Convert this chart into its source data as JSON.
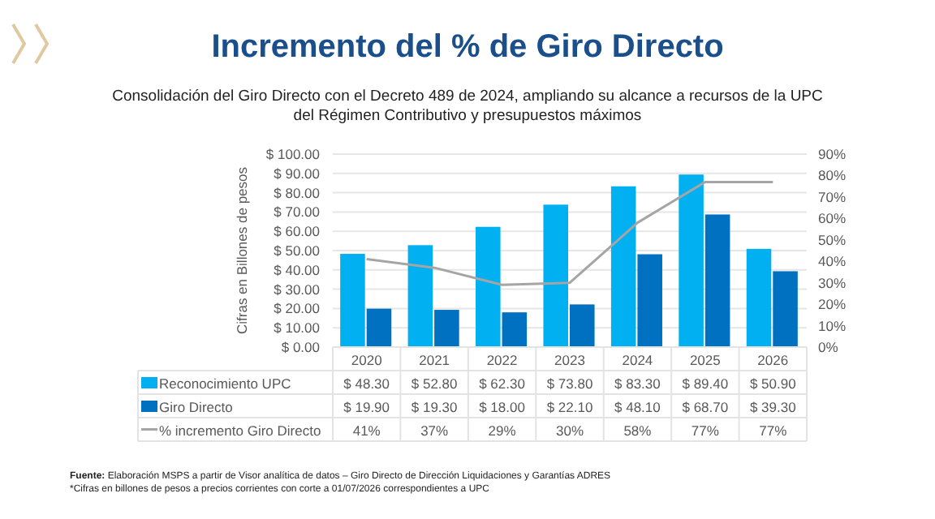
{
  "chart_data": {
    "type": "bar",
    "title": "Incremento del % de Giro Directo",
    "subtitle": "Consolidación del Giro Directo con el Decreto 489 de 2024, ampliando su alcance a recursos de la UPC del Régimen Contributivo y presupuestos máximos",
    "ylabel": "Cifras en Billones de pesos",
    "categories": [
      "2020",
      "2021",
      "2022",
      "2023",
      "2024",
      "2025",
      "2026"
    ],
    "series": [
      {
        "name": "Reconocimiento UPC",
        "color": "#00b0f0",
        "values": [
          48.3,
          52.8,
          62.3,
          73.8,
          83.3,
          89.4,
          50.9
        ],
        "value_labels": [
          "$ 48.30",
          "$ 52.80",
          "$ 62.30",
          "$ 73.80",
          "$ 83.30",
          "$ 89.40",
          "$ 50.90"
        ]
      },
      {
        "name": "Giro Directo",
        "color": "#0070c0",
        "values": [
          19.9,
          19.3,
          18.0,
          22.1,
          48.1,
          68.7,
          39.3
        ],
        "value_labels": [
          "$ 19.90",
          "$ 19.30",
          "$ 18.00",
          "$ 22.10",
          "$ 48.10",
          "$ 68.70",
          "$ 39.30"
        ]
      },
      {
        "name": "% incremento Giro Directo",
        "type": "line",
        "axis": "y2",
        "color": "#a5a5a5",
        "values": [
          41,
          37,
          29,
          30,
          58,
          77,
          77
        ],
        "value_labels": [
          "41%",
          "37%",
          "29%",
          "30%",
          "58%",
          "77%",
          "77%"
        ]
      }
    ],
    "ylim": [
      0,
      100
    ],
    "yticks": [
      {
        "value": 0,
        "label": "$ 0.00"
      },
      {
        "value": 10,
        "label": "$ 10.00"
      },
      {
        "value": 20,
        "label": "$ 20.00"
      },
      {
        "value": 30,
        "label": "$ 30.00"
      },
      {
        "value": 40,
        "label": "$ 40.00"
      },
      {
        "value": 50,
        "label": "$ 50.00"
      },
      {
        "value": 60,
        "label": "$ 60.00"
      },
      {
        "value": 70,
        "label": "$ 70.00"
      },
      {
        "value": 80,
        "label": "$ 80.00"
      },
      {
        "value": 90,
        "label": "$ 90.00"
      },
      {
        "value": 100,
        "label": "$ 100.00"
      }
    ],
    "y2lim": [
      0,
      90
    ],
    "y2ticks": [
      {
        "value": 0,
        "label": "0%"
      },
      {
        "value": 10,
        "label": "10%"
      },
      {
        "value": 20,
        "label": "20%"
      },
      {
        "value": 30,
        "label": "30%"
      },
      {
        "value": 40,
        "label": "40%"
      },
      {
        "value": 50,
        "label": "50%"
      },
      {
        "value": 60,
        "label": "60%"
      },
      {
        "value": 70,
        "label": "70%"
      },
      {
        "value": 80,
        "label": "80%"
      },
      {
        "value": 90,
        "label": "90%"
      }
    ],
    "grid": "y",
    "legend": "bottom",
    "marker": "none",
    "line_style": "solid",
    "annotations": [
      "Fuente: Elaboración MSPS a partir de Visor analítica de datos – Giro Directo de Dirección Liquidaciones y Garantías ADRES",
      "*Cifras en billones de pesos a precios corrientes con corte a 01/07/2026 correspondientes a UPC"
    ]
  }
}
